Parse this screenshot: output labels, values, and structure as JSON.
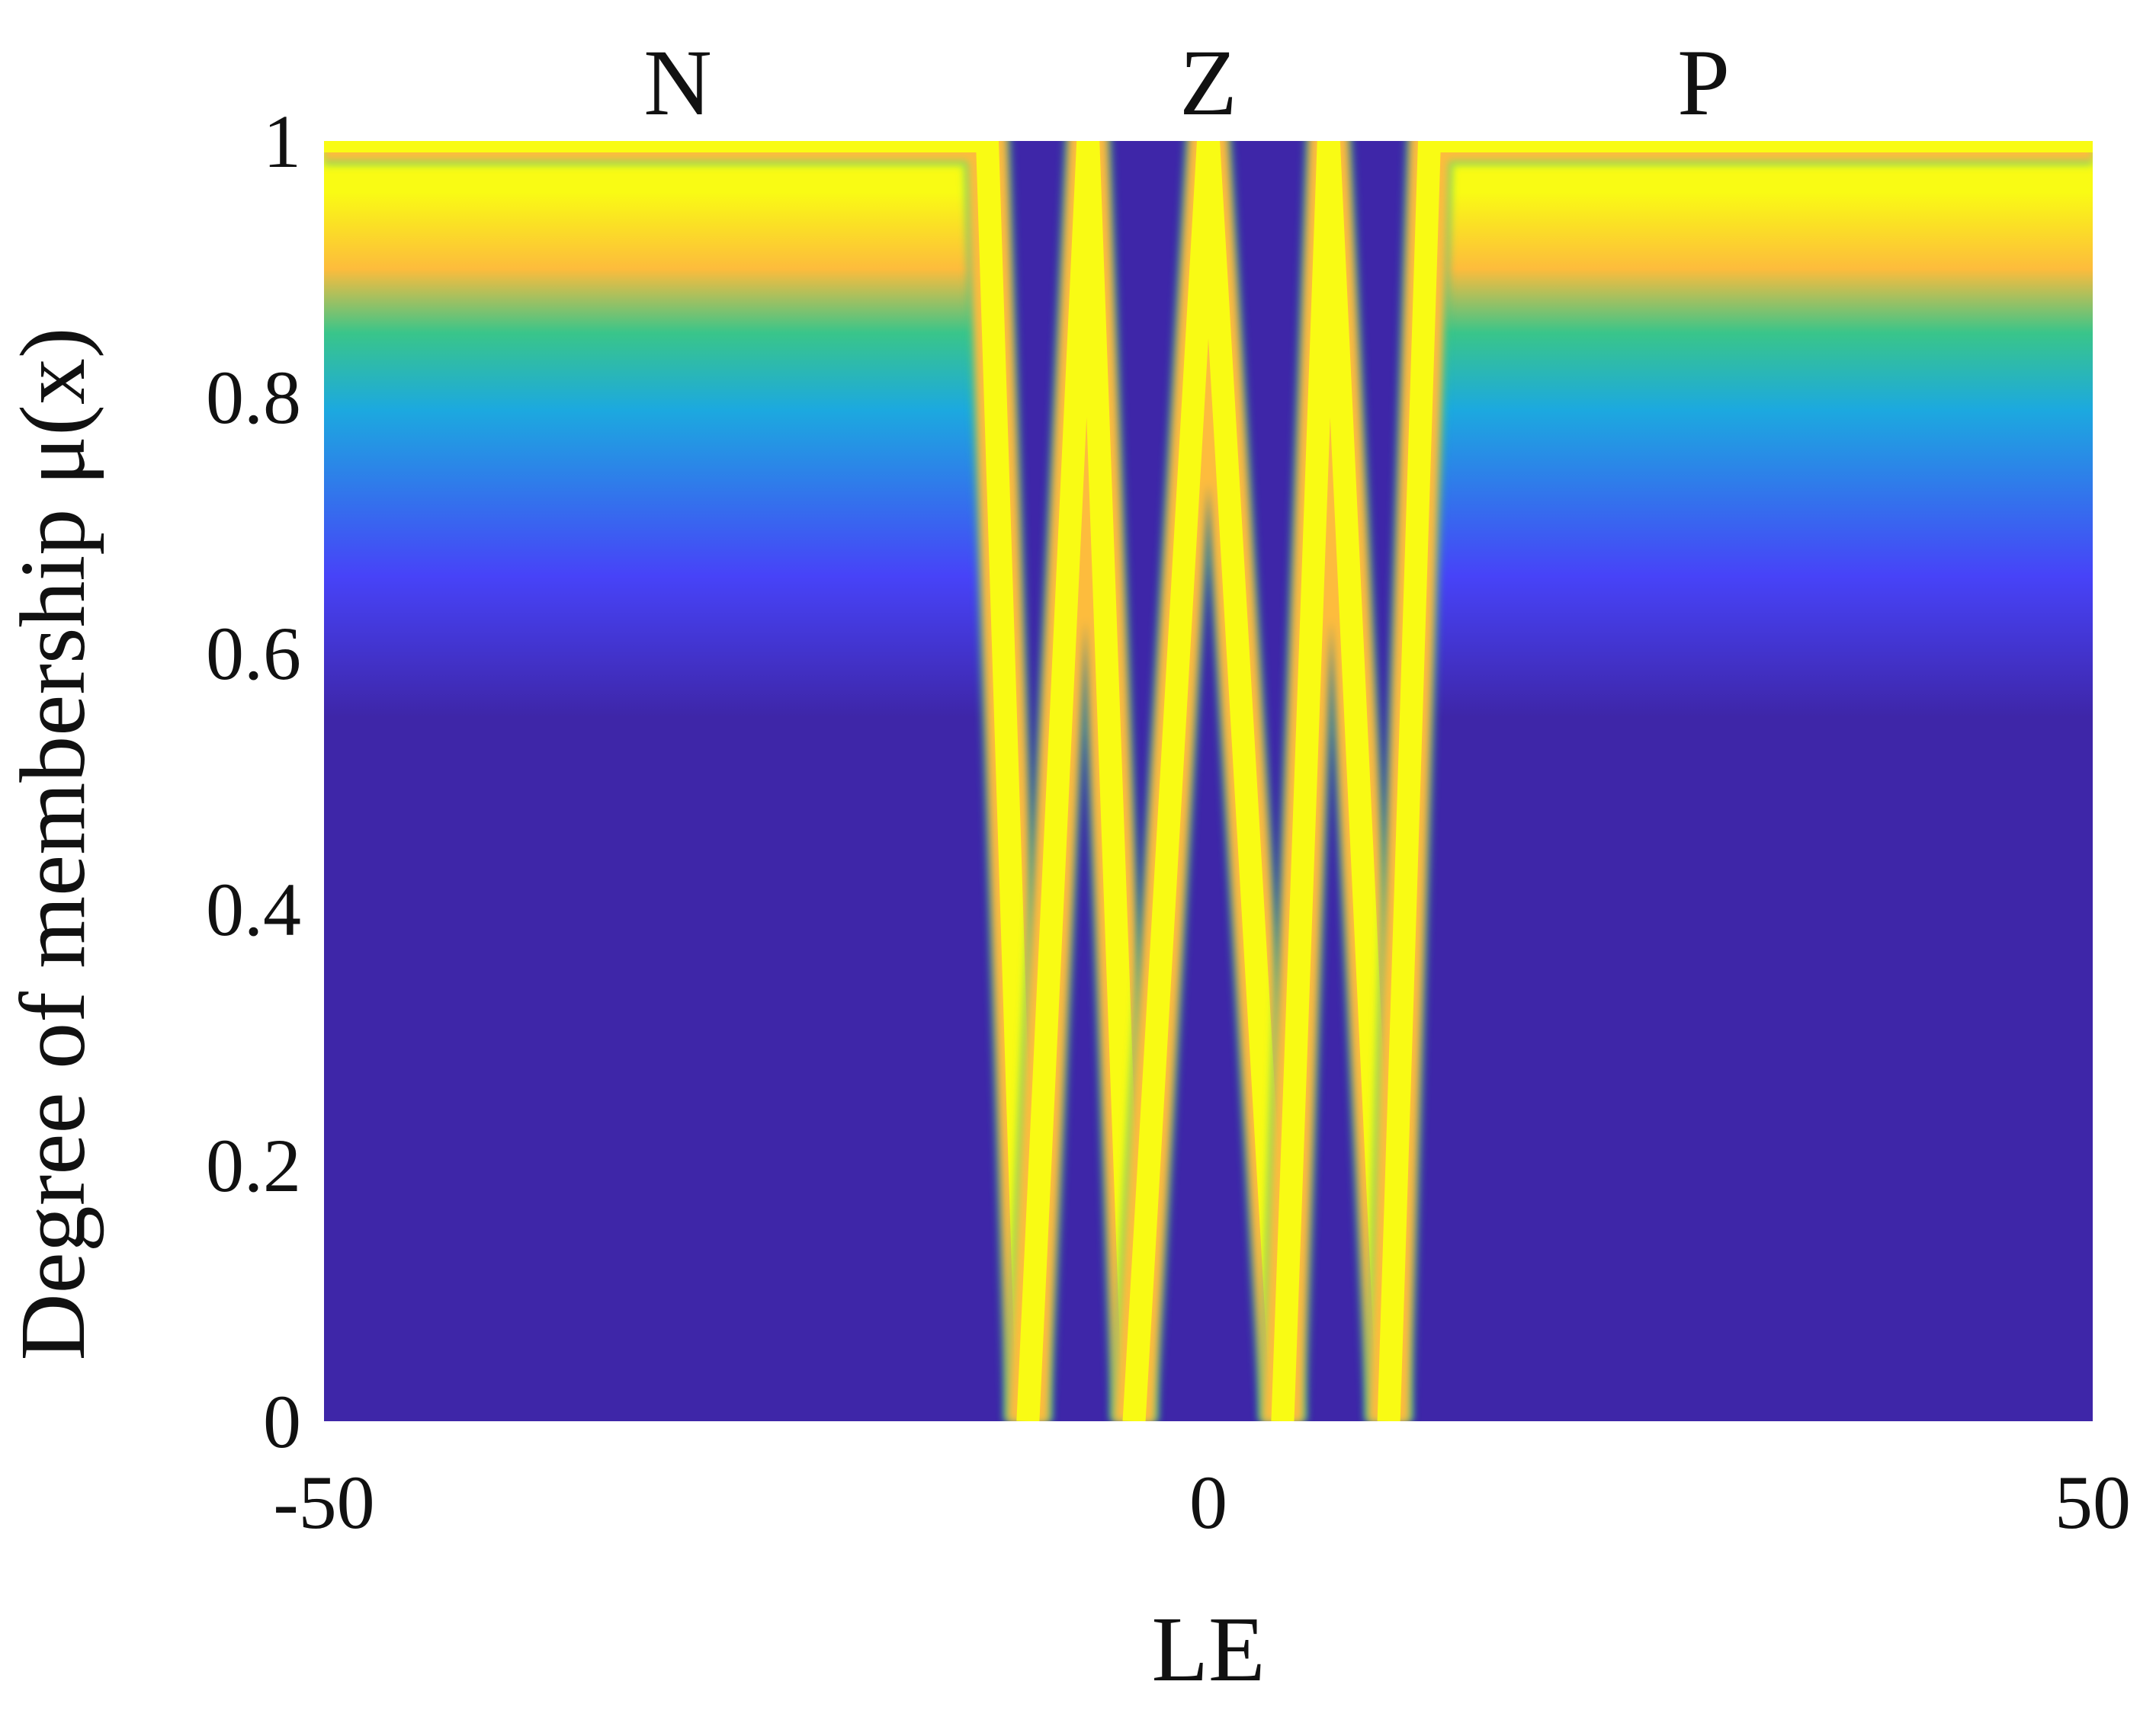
{
  "chart_data": {
    "type": "heatmap",
    "title": "",
    "xlabel": "LE",
    "ylabel": "Degree of membership μ(x)",
    "xlim": [
      -50,
      50
    ],
    "ylim": [
      0,
      1
    ],
    "x_ticks": [
      -50,
      0,
      50
    ],
    "x_tick_labels": [
      "-50",
      "0",
      "50"
    ],
    "y_ticks": [
      0,
      0.2,
      0.4,
      0.6,
      0.8,
      1
    ],
    "y_tick_labels": [
      "0",
      "0.2",
      "0.4",
      "0.6",
      "0.8",
      "1"
    ],
    "grid": false,
    "colormap": [
      "#3e26a8",
      "#4743f8",
      "#1ca9df",
      "#39c58a",
      "#fdbc3c",
      "#f9fb14"
    ],
    "background_color": "#3e26a8",
    "sets": [
      {
        "name": "N",
        "label_x": -30
      },
      {
        "name": "Z",
        "label_x": 0
      },
      {
        "name": "P",
        "label_x": 28
      }
    ],
    "membership_curves": [
      {
        "points": [
          [
            -50,
            1
          ],
          [
            -12.5,
            1
          ],
          [
            -10.2,
            0
          ]
        ]
      },
      {
        "points": [
          [
            -10.2,
            0
          ],
          [
            -6.8,
            1
          ],
          [
            -4.2,
            0
          ]
        ]
      },
      {
        "points": [
          [
            -4.2,
            0
          ],
          [
            0,
            1
          ],
          [
            4.2,
            0
          ]
        ]
      },
      {
        "points": [
          [
            4.2,
            0
          ],
          [
            6.8,
            1
          ],
          [
            10.2,
            0
          ]
        ]
      },
      {
        "points": [
          [
            10.2,
            0
          ],
          [
            12.5,
            1
          ],
          [
            50,
            1
          ]
        ]
      }
    ]
  }
}
